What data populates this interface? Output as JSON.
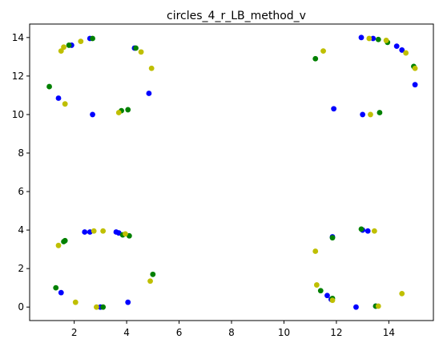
{
  "chart_data": {
    "type": "scatter",
    "title": "circles_4_r_LB_method_v",
    "xlabel": "",
    "ylabel": "",
    "xlim": [
      0.3,
      15.7
    ],
    "ylim": [
      -0.7,
      14.7
    ],
    "xticks": [
      2,
      4,
      6,
      8,
      10,
      12,
      14
    ],
    "yticks": [
      0,
      2,
      4,
      6,
      8,
      10,
      12,
      14
    ],
    "grid": false,
    "series": [
      {
        "color": "#0000ff",
        "points": [
          [
            1.4,
            10.85
          ],
          [
            1.9,
            13.6
          ],
          [
            2.6,
            13.95
          ],
          [
            2.7,
            10.0
          ],
          [
            4.3,
            13.45
          ],
          [
            4.85,
            11.1
          ],
          [
            12.95,
            14.0
          ],
          [
            13.4,
            13.95
          ],
          [
            14.3,
            13.55
          ],
          [
            14.5,
            13.35
          ],
          [
            11.9,
            10.3
          ],
          [
            13.0,
            10.0
          ],
          [
            15.0,
            11.55
          ],
          [
            1.5,
            0.75
          ],
          [
            2.4,
            3.9
          ],
          [
            2.6,
            3.9
          ],
          [
            3.0,
            0.0
          ],
          [
            3.6,
            3.9
          ],
          [
            3.7,
            3.85
          ],
          [
            4.05,
            0.25
          ],
          [
            11.65,
            0.6
          ],
          [
            11.8,
            0.4
          ],
          [
            12.75,
            0.0
          ],
          [
            13.0,
            4.0
          ],
          [
            13.2,
            3.95
          ],
          [
            13.5,
            0.05
          ],
          [
            11.85,
            3.65
          ]
        ]
      },
      {
        "color": "#008000",
        "points": [
          [
            1.05,
            11.45
          ],
          [
            1.8,
            13.6
          ],
          [
            2.7,
            13.95
          ],
          [
            3.8,
            10.2
          ],
          [
            4.05,
            10.25
          ],
          [
            4.35,
            13.45
          ],
          [
            11.2,
            12.9
          ],
          [
            13.6,
            13.9
          ],
          [
            13.95,
            13.75
          ],
          [
            14.95,
            12.5
          ],
          [
            13.65,
            10.1
          ],
          [
            1.3,
            1.0
          ],
          [
            1.6,
            3.4
          ],
          [
            1.65,
            3.45
          ],
          [
            3.1,
            0.0
          ],
          [
            3.85,
            3.75
          ],
          [
            4.1,
            3.7
          ],
          [
            5.0,
            1.7
          ],
          [
            11.4,
            0.85
          ],
          [
            11.85,
            0.45
          ],
          [
            11.85,
            3.6
          ],
          [
            12.95,
            4.05
          ],
          [
            13.5,
            0.05
          ]
        ]
      },
      {
        "color": "#bfbf00",
        "points": [
          [
            1.5,
            13.3
          ],
          [
            1.6,
            13.5
          ],
          [
            1.65,
            10.55
          ],
          [
            2.25,
            13.8
          ],
          [
            3.7,
            10.1
          ],
          [
            4.55,
            13.25
          ],
          [
            4.95,
            12.4
          ],
          [
            11.5,
            13.3
          ],
          [
            13.25,
            13.95
          ],
          [
            13.9,
            13.85
          ],
          [
            14.65,
            13.2
          ],
          [
            15.0,
            12.4
          ],
          [
            13.3,
            10.0
          ],
          [
            1.4,
            3.2
          ],
          [
            2.05,
            0.25
          ],
          [
            2.75,
            3.95
          ],
          [
            2.85,
            0.0
          ],
          [
            3.1,
            3.95
          ],
          [
            3.95,
            3.8
          ],
          [
            4.9,
            1.35
          ],
          [
            11.2,
            2.9
          ],
          [
            11.25,
            1.15
          ],
          [
            11.85,
            0.35
          ],
          [
            13.45,
            3.95
          ],
          [
            13.6,
            0.05
          ],
          [
            14.5,
            0.7
          ]
        ]
      }
    ]
  }
}
